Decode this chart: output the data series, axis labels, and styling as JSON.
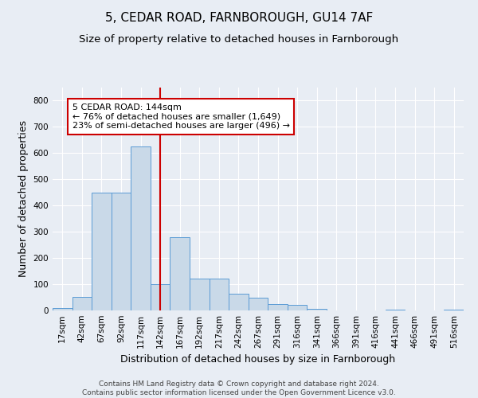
{
  "title1": "5, CEDAR ROAD, FARNBOROUGH, GU14 7AF",
  "title2": "Size of property relative to detached houses in Farnborough",
  "xlabel": "Distribution of detached houses by size in Farnborough",
  "ylabel": "Number of detached properties",
  "footnote": "Contains HM Land Registry data © Crown copyright and database right 2024.\nContains public sector information licensed under the Open Government Licence v3.0.",
  "bar_labels": [
    "17sqm",
    "42sqm",
    "67sqm",
    "92sqm",
    "117sqm",
    "142sqm",
    "167sqm",
    "192sqm",
    "217sqm",
    "242sqm",
    "267sqm",
    "291sqm",
    "316sqm",
    "341sqm",
    "366sqm",
    "391sqm",
    "416sqm",
    "441sqm",
    "466sqm",
    "491sqm",
    "516sqm"
  ],
  "bar_values": [
    10,
    52,
    450,
    450,
    625,
    100,
    280,
    120,
    120,
    65,
    50,
    25,
    20,
    5,
    0,
    0,
    0,
    2,
    0,
    0,
    2
  ],
  "bar_color": "#c9d9e8",
  "bar_edge_color": "#5b9bd5",
  "vline_pos": 5.5,
  "vline_color": "#cc0000",
  "annotation_title": "5 CEDAR ROAD: 144sqm",
  "annotation_line1": "← 76% of detached houses are smaller (1,649)",
  "annotation_line2": "23% of semi-detached houses are larger (496) →",
  "annotation_box_color": "#ffffff",
  "annotation_box_edge": "#cc0000",
  "ylim": [
    0,
    850
  ],
  "yticks": [
    0,
    100,
    200,
    300,
    400,
    500,
    600,
    700,
    800
  ],
  "background_color": "#e8edf4",
  "grid_color": "#ffffff",
  "title_fontsize": 11,
  "subtitle_fontsize": 9.5,
  "axis_label_fontsize": 9,
  "tick_fontsize": 7.5,
  "footnote_fontsize": 6.5
}
